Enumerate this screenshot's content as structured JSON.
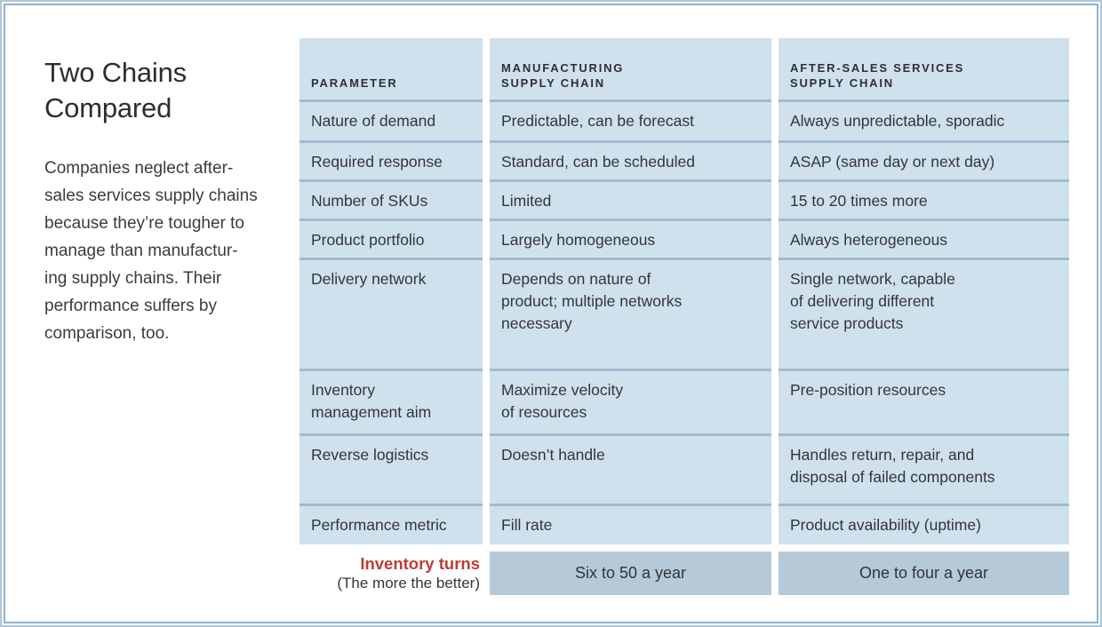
{
  "panel": {
    "title": "Two Chains\nCompared",
    "description": "Companies neglect after-\nsales services supply chains\nbecause they’re tougher to\nmanage than manufactur-\ning supply chains. Their\nperformance suffers by\ncomparison, too."
  },
  "table": {
    "headers": {
      "parameter": "PARAMETER",
      "manufacturing": "MANUFACTURING\nSUPPLY CHAIN",
      "after_sales": "AFTER-SALES SERVICES\nSUPPLY CHAIN"
    },
    "rows": [
      {
        "parameter": "Nature of demand",
        "manufacturing": "Predictable, can be forecast",
        "after_sales": "Always unpredictable, sporadic"
      },
      {
        "parameter": "Required response",
        "manufacturing": "Standard, can be scheduled",
        "after_sales": "ASAP (same day or next day)"
      },
      {
        "parameter": "Number of SKUs",
        "manufacturing": "Limited",
        "after_sales": "15 to 20 times more"
      },
      {
        "parameter": "Product portfolio",
        "manufacturing": "Largely homogeneous",
        "after_sales": "Always heterogeneous"
      },
      {
        "parameter": "Delivery network",
        "manufacturing": "Depends on nature of\nproduct; multiple networks\nnecessary",
        "after_sales": "Single network, capable\nof delivering different\nservice products"
      },
      {
        "parameter": "Inventory\nmanagement aim",
        "manufacturing": "Maximize velocity\nof resources",
        "after_sales": "Pre-position resources"
      },
      {
        "parameter": "Reverse logistics",
        "manufacturing": "Doesn’t handle",
        "after_sales": "Handles return, repair, and\ndisposal of failed components"
      },
      {
        "parameter": "Performance metric",
        "manufacturing": "Fill rate",
        "after_sales": "Product availability (uptime)"
      }
    ],
    "summary": {
      "label_primary": "Inventory turns",
      "label_secondary": "(The more the better)",
      "manufacturing": "Six to 50 a year",
      "after_sales": "One to four a year"
    }
  },
  "colors": {
    "cell_blue": "#cfe1ed",
    "separator_blue": "#9fbbd0",
    "summary_cell_blue": "#b5c9d8",
    "accent_red": "#c03b32",
    "frame_outer": "#aec6da",
    "frame_inner": "#92b2cb",
    "text_dark": "#34353b"
  }
}
